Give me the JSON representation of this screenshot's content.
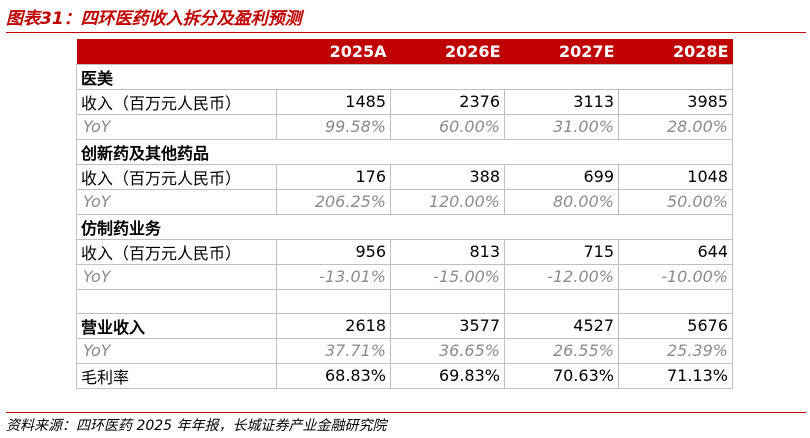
{
  "figure": {
    "title": "图表31：四环医药收入拆分及盈利预测",
    "source": "资料来源：四环医药 2025 年年报，长城证券产业金融研究院"
  },
  "table": {
    "headers": [
      "",
      "2025A",
      "2026E",
      "2027E",
      "2028E"
    ],
    "sections": [
      {
        "name": "医美",
        "rows": [
          {
            "label": "收入（百万元人民币）",
            "type": "revenue",
            "values": [
              "1485",
              "2376",
              "3113",
              "3985"
            ]
          },
          {
            "label": "YoY",
            "type": "yoy",
            "values": [
              "99.58%",
              "60.00%",
              "31.00%",
              "28.00%"
            ]
          }
        ]
      },
      {
        "name": "创新药及其他药品",
        "rows": [
          {
            "label": "收入（百万元人民币）",
            "type": "revenue",
            "values": [
              "176",
              "388",
              "699",
              "1048"
            ]
          },
          {
            "label": "YoY",
            "type": "yoy",
            "values": [
              "206.25%",
              "120.00%",
              "80.00%",
              "50.00%"
            ]
          }
        ]
      },
      {
        "name": "仿制药业务",
        "rows": [
          {
            "label": "收入（百万元人民币）",
            "type": "revenue",
            "values": [
              "956",
              "813",
              "715",
              "644"
            ]
          },
          {
            "label": "YoY",
            "type": "yoy",
            "values": [
              "-13.01%",
              "-15.00%",
              "-12.00%",
              "-10.00%"
            ]
          }
        ]
      }
    ],
    "totals": [
      {
        "label": "营业收入",
        "type": "total",
        "values": [
          "2618",
          "3577",
          "4527",
          "5676"
        ]
      },
      {
        "label": "YoY",
        "type": "yoy",
        "values": [
          "37.71%",
          "36.65%",
          "26.55%",
          "25.39%"
        ]
      },
      {
        "label": "毛利率",
        "type": "margin",
        "values": [
          "68.83%",
          "69.83%",
          "70.63%",
          "71.13%"
        ]
      }
    ]
  },
  "colors": {
    "accent": "#c00000",
    "header_text": "#ffffff",
    "yoy_text": "#8c8c8c",
    "grid": "#bfbfbf"
  }
}
